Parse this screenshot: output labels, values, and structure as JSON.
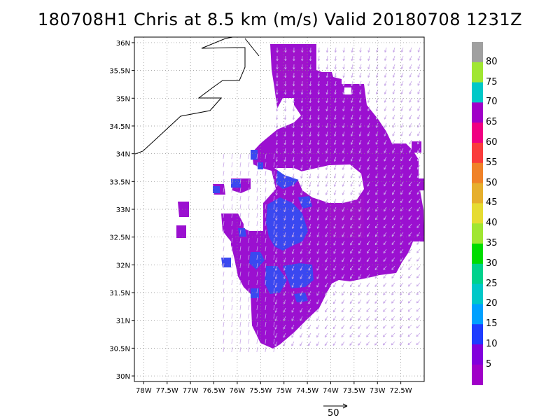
{
  "title": "180708H1 Chris at 8.5 km (m/s) Valid 20180708  1231Z",
  "map": {
    "lon_range": [
      -78.2,
      -72.0
    ],
    "lat_range": [
      29.9,
      36.1
    ],
    "lat_ticks": [
      "36N",
      "35.5N",
      "35N",
      "34.5N",
      "34N",
      "33.5N",
      "33N",
      "32.5N",
      "32N",
      "31.5N",
      "31N",
      "30.5N",
      "30N"
    ],
    "lon_ticks": [
      "78W",
      "77.5W",
      "77W",
      "76.5W",
      "76W",
      "75.5W",
      "75W",
      "74.5W",
      "74W",
      "73.5W",
      "73W",
      "72.5W"
    ],
    "grid": true,
    "grid_style": "dotted",
    "field": "wind speed at 8.5 km with wind barbs/vectors",
    "coastline_color": "#000000"
  },
  "colorbar": {
    "labels": [
      "80",
      "75",
      "70",
      "65",
      "60",
      "55",
      "50",
      "45",
      "40",
      "35",
      "30",
      "25",
      "20",
      "15",
      "10",
      "5"
    ],
    "colors": [
      "#a0a0a0",
      "#a0e632",
      "#00c8c8",
      "#a000c8",
      "#f00082",
      "#fa3c3c",
      "#f08228",
      "#e6af2d",
      "#e6dc32",
      "#a0e632",
      "#00dc00",
      "#00d28c",
      "#00c8c8",
      "#00a0ff",
      "#1e3cff",
      "#8200dc",
      "#a000c8"
    ]
  },
  "reference_vector": {
    "label": "50"
  },
  "colors": {
    "dominant_field": "#9b10d0",
    "secondary_field": "#3548f0",
    "vector_color": "#c8a8e8"
  }
}
